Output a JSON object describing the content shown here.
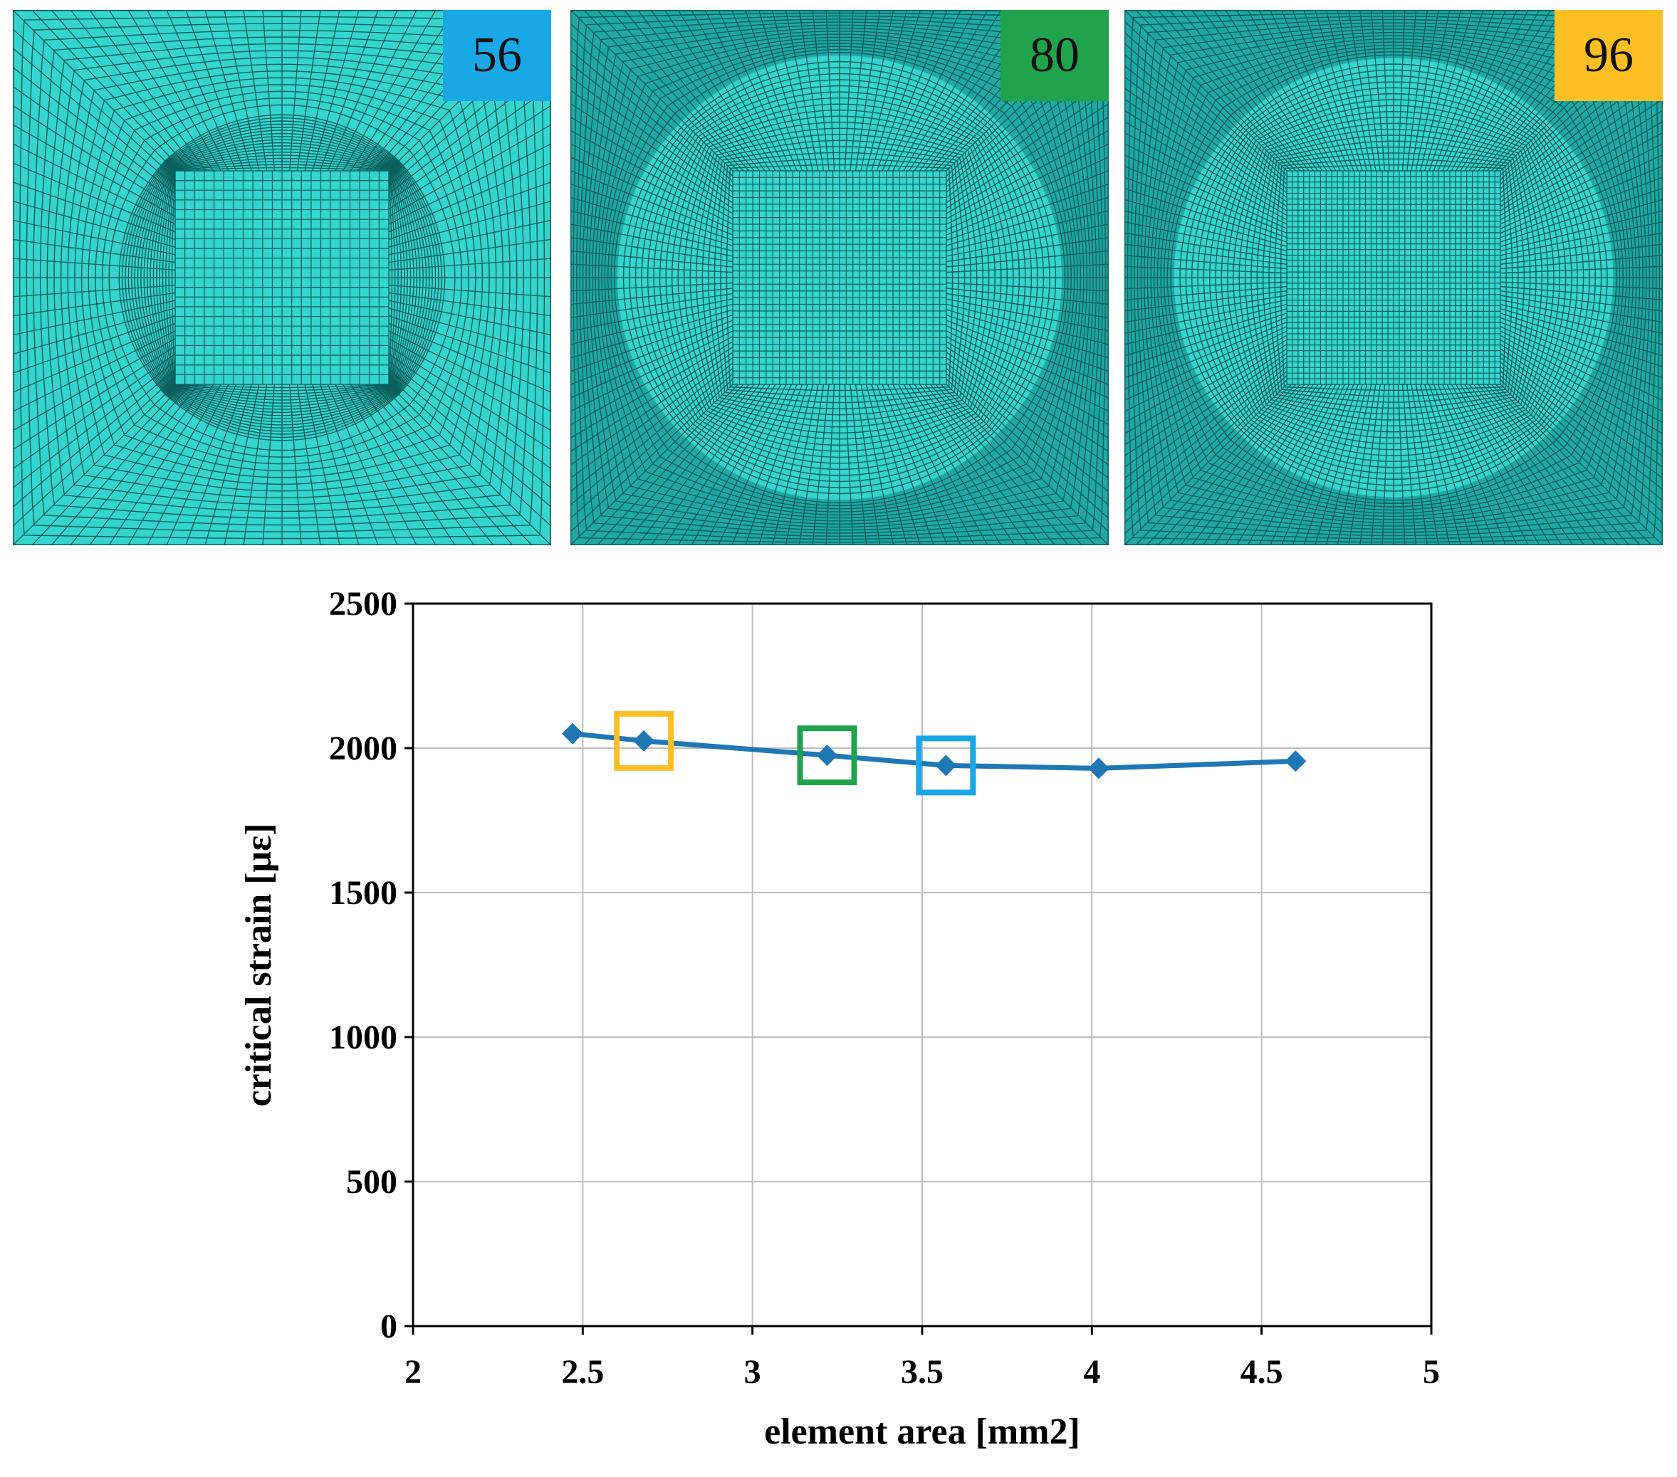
{
  "meshes": [
    {
      "label": "56",
      "badge_color": "#1AA7E6",
      "radial_lines": 56,
      "ring_radius": 0.62,
      "ring_color": "#3ED9D2"
    },
    {
      "label": "80",
      "badge_color": "#1FA34B",
      "radial_lines": 80,
      "ring_radius": 0.83,
      "ring_color": "#3ED9D2"
    },
    {
      "label": "96",
      "badge_color": "#FBBF24",
      "radial_lines": 96,
      "ring_radius": 0.82,
      "ring_color": "#3ED9D2"
    }
  ],
  "mesh_colors": {
    "fill": "#35D5CF",
    "line": "#0B5F5C",
    "dark_fill": "#1FA8A4"
  },
  "chart_data": {
    "type": "line",
    "title": "",
    "xlabel": "element area [mm2]",
    "ylabel": "critical strain [με]",
    "xlim": [
      2,
      5
    ],
    "ylim": [
      0,
      2500
    ],
    "xticks": [
      2,
      2.5,
      3,
      3.5,
      4,
      4.5,
      5
    ],
    "xtick_labels": [
      "2",
      "2.5",
      "3",
      "3.5",
      "4",
      "4.5",
      "5"
    ],
    "yticks": [
      0,
      500,
      1000,
      1500,
      2000,
      2500
    ],
    "ytick_labels": [
      "0",
      "500",
      "1000",
      "1500",
      "2000",
      "2500"
    ],
    "grid": true,
    "series": [
      {
        "name": "critical strain",
        "color": "#1F77B4",
        "x": [
          2.47,
          2.68,
          3.22,
          3.57,
          4.02,
          4.6
        ],
        "y": [
          2050,
          2025,
          1975,
          1940,
          1930,
          1955
        ]
      }
    ],
    "highlights": [
      {
        "label": "96",
        "x": 2.68,
        "y": 2025,
        "color": "#FBBF24"
      },
      {
        "label": "80",
        "x": 3.22,
        "y": 1975,
        "color": "#1FA34B"
      },
      {
        "label": "56",
        "x": 3.57,
        "y": 1940,
        "color": "#1AA7E6"
      }
    ]
  }
}
